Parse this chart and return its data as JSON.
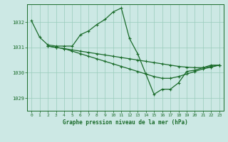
{
  "title": "Graphe pression niveau de la mer (hPa)",
  "background_color": "#cce8e4",
  "grid_color": "#99ccbb",
  "line_color": "#1a6b2a",
  "xlim": [
    -0.5,
    23.5
  ],
  "ylim": [
    1028.5,
    1032.7
  ],
  "yticks": [
    1029,
    1030,
    1031,
    1032
  ],
  "xticks": [
    0,
    1,
    2,
    3,
    4,
    5,
    6,
    7,
    8,
    9,
    10,
    11,
    12,
    13,
    14,
    15,
    16,
    17,
    18,
    19,
    20,
    21,
    22,
    23
  ],
  "series": [
    {
      "x": [
        0,
        1,
        2,
        3,
        4,
        5,
        6,
        7,
        8,
        9,
        10,
        11,
        12,
        13,
        14,
        15,
        16,
        17,
        18,
        19,
        20,
        21,
        22,
        23
      ],
      "y": [
        1032.05,
        1031.4,
        1031.1,
        1031.05,
        1031.05,
        1031.05,
        1031.5,
        1031.65,
        1031.9,
        1032.1,
        1032.4,
        1032.55,
        1031.35,
        1030.75,
        1029.95,
        1029.15,
        1029.35,
        1029.35,
        1029.6,
        1030.05,
        1030.1,
        1030.2,
        1030.3,
        1030.3
      ]
    },
    {
      "x": [
        2,
        3,
        4,
        5,
        6,
        7,
        8,
        9,
        10,
        11,
        12,
        13,
        14,
        15,
        16,
        17,
        18,
        19,
        20,
        21,
        22,
        23
      ],
      "y": [
        1031.05,
        1031.0,
        1030.95,
        1030.9,
        1030.85,
        1030.8,
        1030.75,
        1030.7,
        1030.65,
        1030.6,
        1030.55,
        1030.5,
        1030.45,
        1030.4,
        1030.35,
        1030.3,
        1030.25,
        1030.22,
        1030.2,
        1030.2,
        1030.25,
        1030.3
      ]
    },
    {
      "x": [
        2,
        3,
        4,
        5,
        6,
        7,
        8,
        9,
        10,
        11,
        12,
        13,
        14,
        15,
        16,
        17,
        18,
        19,
        20,
        21,
        22,
        23
      ],
      "y": [
        1031.05,
        1031.0,
        1030.95,
        1030.85,
        1030.75,
        1030.65,
        1030.55,
        1030.45,
        1030.35,
        1030.25,
        1030.15,
        1030.05,
        1029.95,
        1029.85,
        1029.78,
        1029.78,
        1029.85,
        1029.95,
        1030.05,
        1030.15,
        1030.22,
        1030.3
      ]
    }
  ]
}
